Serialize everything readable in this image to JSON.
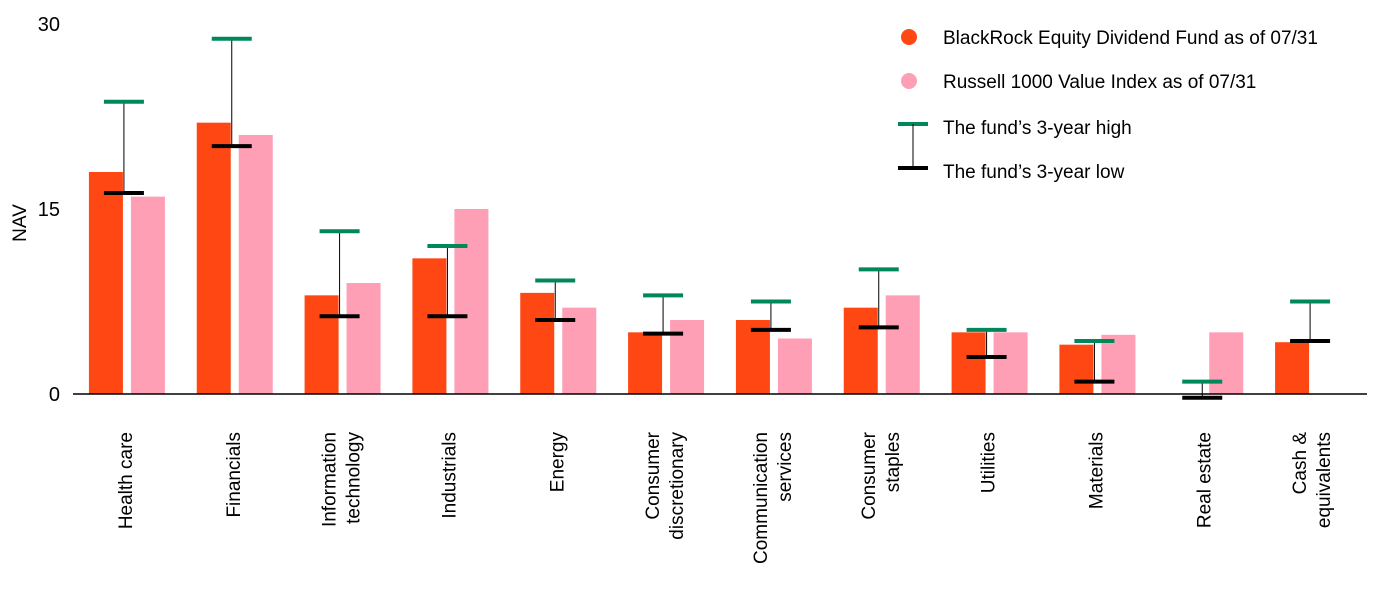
{
  "chart_data": {
    "type": "bar",
    "ylabel": "NAV",
    "ylim": [
      0,
      30
    ],
    "yticks": [
      "0",
      "15",
      "30"
    ],
    "categories": [
      [
        "Health care"
      ],
      [
        "Financials"
      ],
      [
        "Information",
        "technology"
      ],
      [
        "Industrials"
      ],
      [
        "Energy"
      ],
      [
        "Consumer",
        "discretionary"
      ],
      [
        "Communication",
        "services"
      ],
      [
        "Consumer",
        "staples"
      ],
      [
        "Utilities"
      ],
      [
        "Materials"
      ],
      [
        "Real estate"
      ],
      [
        "Cash &",
        "equivalents"
      ]
    ],
    "series": [
      {
        "name": "BlackRock Equity Dividend Fund as of 07/31",
        "color": "#ff4713",
        "values": [
          18.0,
          22.0,
          8.0,
          11.0,
          8.2,
          5.0,
          6.0,
          7.0,
          5.0,
          4.0,
          0,
          4.2
        ]
      },
      {
        "name": "Russell 1000 Value Index as of 07/31",
        "color": "#fe9fb5",
        "values": [
          16.0,
          21.0,
          9.0,
          15.0,
          7.0,
          6.0,
          4.5,
          8.0,
          5.0,
          4.8,
          5.0,
          null
        ]
      }
    ],
    "range_high": {
      "name": "The fund’s 3-year high",
      "color": "#00875a",
      "values": [
        23.7,
        28.8,
        13.2,
        12.0,
        9.2,
        8.0,
        7.5,
        10.1,
        5.2,
        4.3,
        1.0,
        7.5
      ]
    },
    "range_low": {
      "name": "The fund’s 3-year low",
      "color": "#000000",
      "values": [
        16.3,
        20.1,
        6.3,
        6.3,
        6.0,
        4.9,
        5.2,
        5.4,
        3.0,
        1.0,
        -0.3,
        4.3
      ]
    },
    "legend": "top-right",
    "grid": false
  }
}
